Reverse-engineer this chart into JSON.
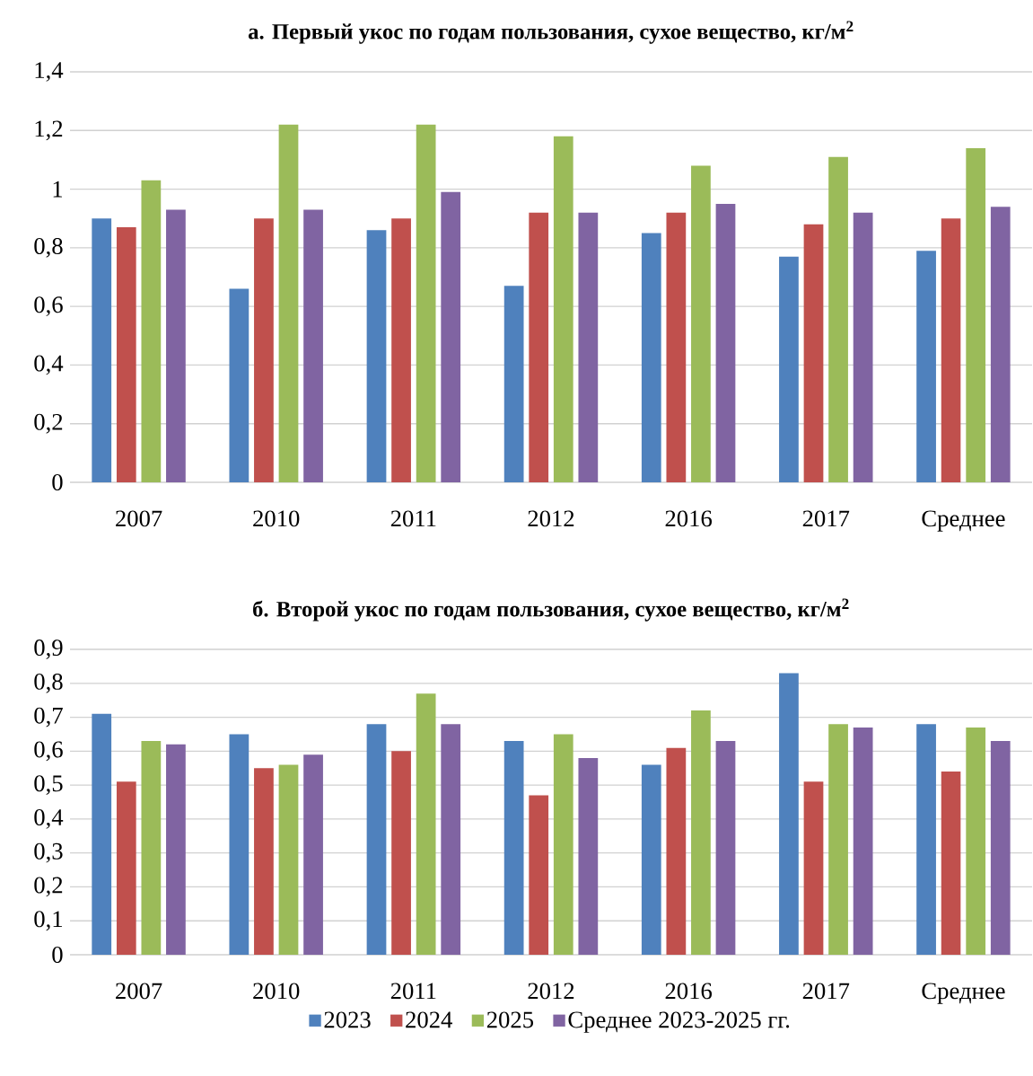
{
  "chart_data": [
    {
      "type": "bar",
      "title": "а. Первый укос по годам пользования, сухое вещество, кг/м$^{2}$",
      "categories": [
        "2007",
        "2010",
        "2011",
        "2012",
        "2016",
        "2017",
        "Среднее"
      ],
      "series": [
        {
          "color": "#4f81bd",
          "values": [
            0.9,
            0.66,
            0.86,
            0.67,
            0.85,
            0.77,
            0.79
          ]
        },
        {
          "color": "#c0504d",
          "values": [
            0.87,
            0.9,
            0.9,
            0.92,
            0.92,
            0.88,
            0.9
          ]
        },
        {
          "color": "#9bbb59",
          "values": [
            1.03,
            1.22,
            1.22,
            1.18,
            1.08,
            1.11,
            1.14
          ]
        },
        {
          "color": "#8064a2",
          "values": [
            0.93,
            0.93,
            0.99,
            0.92,
            0.95,
            0.92,
            0.94
          ]
        }
      ],
      "ylim": [
        0,
        1.4
      ],
      "yticks": [
        0,
        {
          "value": 0.2,
          "label": "0,2"
        },
        {
          "value": 0.4,
          "label": "0,4"
        },
        {
          "value": 0.6,
          "label": "0,6"
        },
        {
          "value": 0.8,
          "label": "0,8"
        },
        1,
        {
          "value": 1.2,
          "label": "1,2"
        },
        {
          "value": 1.4,
          "label": "1,4"
        }
      ],
      "grid": "y"
    },
    {
      "type": "bar",
      "title": "б. Второй укос по годам пользования, сухое вещество, кг/м$^{2}$",
      "categories": [
        "2007",
        "2010",
        "2011",
        "2012",
        "2016",
        "2017",
        "Среднее"
      ],
      "series": [
        {
          "name": "2023",
          "color": "#4f81bd",
          "values": [
            0.71,
            0.65,
            0.68,
            0.63,
            0.56,
            0.83,
            0.68
          ]
        },
        {
          "name": "2024",
          "color": "#c0504d",
          "values": [
            0.51,
            0.55,
            0.6,
            0.47,
            0.61,
            0.51,
            0.54
          ]
        },
        {
          "name": "2025",
          "color": "#9bbb59",
          "values": [
            0.63,
            0.56,
            0.77,
            0.65,
            0.72,
            0.68,
            0.67
          ]
        },
        {
          "name": "Среднее 2023-2025 гг.",
          "color": "#8064a2",
          "values": [
            0.62,
            0.59,
            0.68,
            0.58,
            0.63,
            0.67,
            0.63
          ]
        }
      ],
      "ylim": [
        0,
        0.9
      ],
      "yticks": [
        0,
        {
          "value": 0.1,
          "label": "0,1"
        },
        {
          "value": 0.2,
          "label": "0,2"
        },
        {
          "value": 0.3,
          "label": "0,3"
        },
        {
          "value": 0.4,
          "label": "0,4"
        },
        {
          "value": 0.5,
          "label": "0,5"
        },
        {
          "value": 0.6,
          "label": "0,6"
        },
        {
          "value": 0.7,
          "label": "0,7"
        },
        {
          "value": 0.8,
          "label": "0,8"
        },
        {
          "value": 0.9,
          "label": "0,9"
        }
      ],
      "grid": "y",
      "legend": "bottom"
    }
  ]
}
